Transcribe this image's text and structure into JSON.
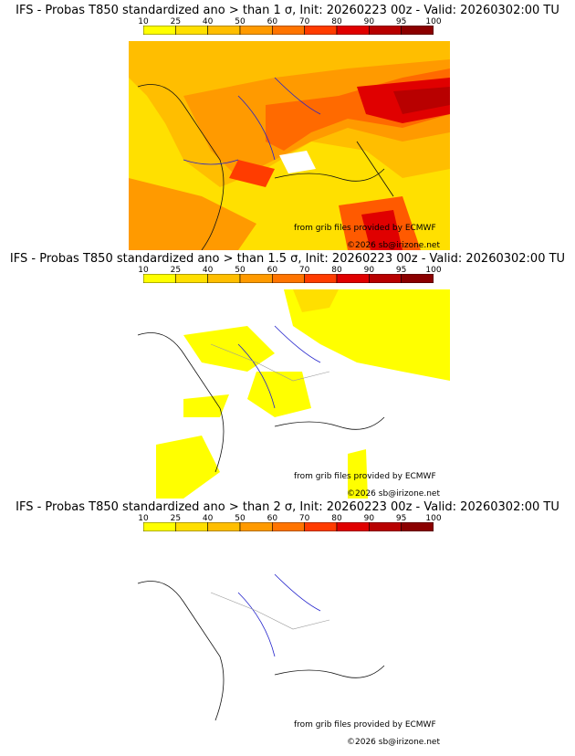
{
  "colorbar": {
    "ticks": [
      "10",
      "25",
      "40",
      "50",
      "60",
      "70",
      "80",
      "90",
      "95",
      "100"
    ],
    "colors": [
      "#ffff00",
      "#ffdf00",
      "#ffbe00",
      "#ff9a00",
      "#ff7400",
      "#ff3c00",
      "#e00000",
      "#b80000",
      "#8b0000"
    ]
  },
  "credits": {
    "source": "from grib files provided by ECMWF",
    "copyright": "©2026 sb@irizone.net"
  },
  "panels": [
    {
      "title": "IFS - Probas T850  standardized ano > than 1 σ, Init: 20260223 00z - Valid: 20260302:00 TU"
    },
    {
      "title": "IFS - Probas T850  standardized ano > than 1.5 σ, Init: 20260223 00z - Valid: 20260302:00 TU"
    },
    {
      "title": "IFS - Probas T850  standardized ano > than 2 σ, Init: 20260223 00z - Valid: 20260302:00 TU"
    }
  ],
  "colors": {
    "coast": "#111111",
    "river": "#2222cc",
    "border": "#999999"
  }
}
